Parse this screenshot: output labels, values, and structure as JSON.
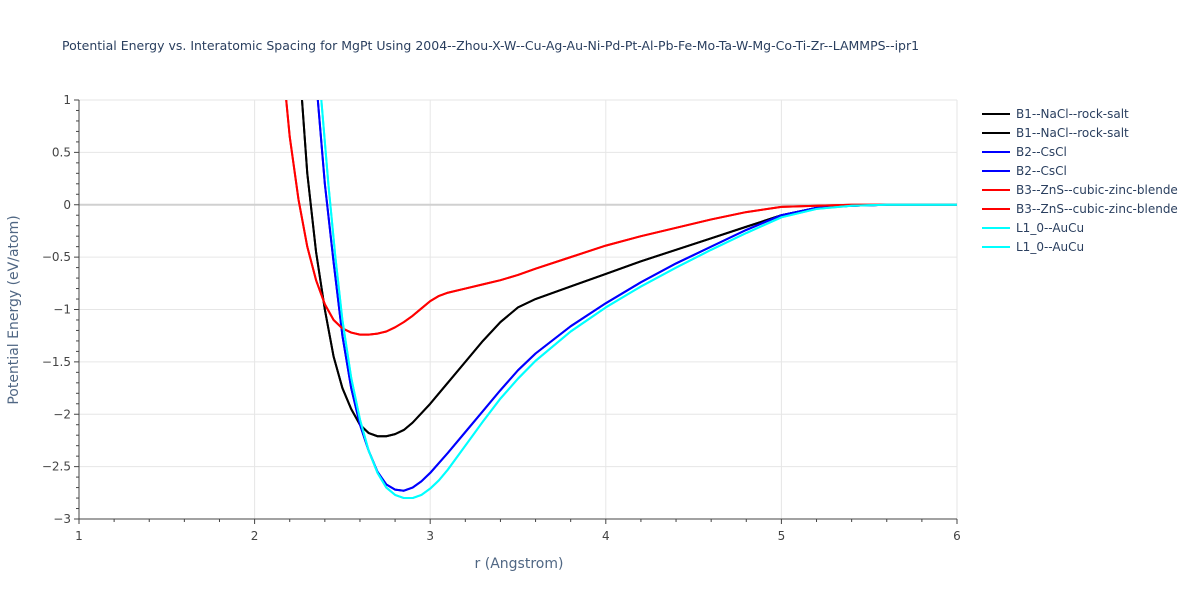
{
  "chart_data": {
    "type": "line",
    "title": "Potential Energy vs. Interatomic Spacing for MgPt Using 2004--Zhou-X-W--Cu-Ag-Au-Ni-Pd-Pt-Al-Pb-Fe-Mo-Ta-W-Mg-Co-Ti-Zr--LAMMPS--ipr1",
    "xlabel": "r (Angstrom)",
    "ylabel": "Potential Energy (eV/atom)",
    "xlim": [
      1,
      6
    ],
    "ylim": [
      -3,
      1
    ],
    "xticks": [
      1,
      2,
      3,
      4,
      5,
      6
    ],
    "xtick_labels": [
      "1",
      "2",
      "3",
      "4",
      "5",
      "6"
    ],
    "yticks": [
      1,
      0.5,
      0,
      -0.5,
      -1,
      -1.5,
      -2,
      -2.5,
      -3
    ],
    "ytick_labels": [
      "1",
      "0.5",
      "0",
      "−0.5",
      "−1",
      "−1.5",
      "−2",
      "−2.5",
      "−3"
    ],
    "grid": true,
    "legend_position": "top-right",
    "series": [
      {
        "name": "B1--NaCl--rock-salt",
        "color": "#000000",
        "x": [
          2.27,
          2.3,
          2.35,
          2.4,
          2.45,
          2.5,
          2.55,
          2.6,
          2.65,
          2.7,
          2.75,
          2.8,
          2.85,
          2.9,
          3.0,
          3.1,
          3.2,
          3.3,
          3.4,
          3.5,
          3.6,
          3.8,
          4.0,
          4.2,
          4.4,
          4.6,
          4.8,
          5.0,
          5.2,
          5.4,
          5.6,
          6.0
        ],
        "y": [
          1.0,
          0.3,
          -0.45,
          -1.0,
          -1.45,
          -1.75,
          -1.95,
          -2.1,
          -2.18,
          -2.21,
          -2.21,
          -2.19,
          -2.15,
          -2.08,
          -1.9,
          -1.7,
          -1.5,
          -1.3,
          -1.12,
          -0.98,
          -0.9,
          -0.78,
          -0.66,
          -0.54,
          -0.43,
          -0.32,
          -0.21,
          -0.1,
          -0.03,
          -0.01,
          0.0,
          0.0
        ]
      },
      {
        "name": "B1--NaCl--rock-salt",
        "color": "#000000",
        "x": [
          2.27,
          2.3,
          2.35,
          2.4,
          2.45,
          2.5,
          2.55,
          2.6,
          2.65,
          2.7,
          2.75,
          2.8,
          2.85,
          2.9,
          3.0,
          3.1,
          3.2,
          3.3,
          3.4,
          3.5,
          3.6,
          3.8,
          4.0,
          4.2,
          4.4,
          4.6,
          4.8,
          5.0,
          5.2,
          5.4,
          5.6,
          6.0
        ],
        "y": [
          1.0,
          0.3,
          -0.45,
          -1.0,
          -1.45,
          -1.75,
          -1.95,
          -2.1,
          -2.18,
          -2.21,
          -2.21,
          -2.19,
          -2.15,
          -2.08,
          -1.9,
          -1.7,
          -1.5,
          -1.3,
          -1.12,
          -0.98,
          -0.9,
          -0.78,
          -0.66,
          -0.54,
          -0.43,
          -0.32,
          -0.21,
          -0.1,
          -0.03,
          -0.01,
          0.0,
          0.0
        ]
      },
      {
        "name": "B2--CsCl",
        "color": "#0000ff",
        "x": [
          2.36,
          2.4,
          2.45,
          2.5,
          2.55,
          2.6,
          2.65,
          2.7,
          2.75,
          2.8,
          2.85,
          2.9,
          2.95,
          3.0,
          3.1,
          3.2,
          3.3,
          3.4,
          3.5,
          3.6,
          3.8,
          4.0,
          4.2,
          4.4,
          4.6,
          4.8,
          5.0,
          5.2,
          5.4,
          5.6,
          6.0
        ],
        "y": [
          1.0,
          0.2,
          -0.55,
          -1.25,
          -1.75,
          -2.1,
          -2.35,
          -2.55,
          -2.67,
          -2.72,
          -2.73,
          -2.7,
          -2.64,
          -2.56,
          -2.37,
          -2.17,
          -1.97,
          -1.77,
          -1.58,
          -1.42,
          -1.16,
          -0.94,
          -0.74,
          -0.56,
          -0.4,
          -0.24,
          -0.1,
          -0.03,
          -0.01,
          0.0,
          0.0
        ]
      },
      {
        "name": "B2--CsCl",
        "color": "#0000ff",
        "x": [
          2.36,
          2.4,
          2.45,
          2.5,
          2.55,
          2.6,
          2.65,
          2.7,
          2.75,
          2.8,
          2.85,
          2.9,
          2.95,
          3.0,
          3.1,
          3.2,
          3.3,
          3.4,
          3.5,
          3.6,
          3.8,
          4.0,
          4.2,
          4.4,
          4.6,
          4.8,
          5.0,
          5.2,
          5.4,
          5.6,
          6.0
        ],
        "y": [
          1.0,
          0.2,
          -0.55,
          -1.25,
          -1.75,
          -2.1,
          -2.35,
          -2.55,
          -2.67,
          -2.72,
          -2.73,
          -2.7,
          -2.64,
          -2.56,
          -2.37,
          -2.17,
          -1.97,
          -1.77,
          -1.58,
          -1.42,
          -1.16,
          -0.94,
          -0.74,
          -0.56,
          -0.4,
          -0.24,
          -0.1,
          -0.03,
          -0.01,
          0.0,
          0.0
        ]
      },
      {
        "name": "B3--ZnS--cubic-zinc-blende",
        "color": "#ff0000",
        "x": [
          2.18,
          2.2,
          2.25,
          2.3,
          2.35,
          2.4,
          2.45,
          2.5,
          2.55,
          2.6,
          2.65,
          2.7,
          2.75,
          2.8,
          2.85,
          2.9,
          2.95,
          3.0,
          3.05,
          3.1,
          3.2,
          3.3,
          3.4,
          3.5,
          3.6,
          3.8,
          4.0,
          4.2,
          4.4,
          4.6,
          4.8,
          5.0,
          5.2,
          5.4,
          5.6,
          6.0
        ],
        "y": [
          1.0,
          0.65,
          0.05,
          -0.4,
          -0.72,
          -0.95,
          -1.1,
          -1.18,
          -1.22,
          -1.24,
          -1.24,
          -1.23,
          -1.21,
          -1.17,
          -1.12,
          -1.06,
          -0.99,
          -0.92,
          -0.87,
          -0.84,
          -0.8,
          -0.76,
          -0.72,
          -0.67,
          -0.61,
          -0.5,
          -0.39,
          -0.3,
          -0.22,
          -0.14,
          -0.07,
          -0.02,
          -0.01,
          0.0,
          0.0,
          0.0
        ]
      },
      {
        "name": "B3--ZnS--cubic-zinc-blende",
        "color": "#ff0000",
        "x": [
          2.18,
          2.2,
          2.25,
          2.3,
          2.35,
          2.4,
          2.45,
          2.5,
          2.55,
          2.6,
          2.65,
          2.7,
          2.75,
          2.8,
          2.85,
          2.9,
          2.95,
          3.0,
          3.05,
          3.1,
          3.2,
          3.3,
          3.4,
          3.5,
          3.6,
          3.8,
          4.0,
          4.2,
          4.4,
          4.6,
          4.8,
          5.0,
          5.2,
          5.4,
          5.6,
          6.0
        ],
        "y": [
          1.0,
          0.65,
          0.05,
          -0.4,
          -0.72,
          -0.95,
          -1.1,
          -1.18,
          -1.22,
          -1.24,
          -1.24,
          -1.23,
          -1.21,
          -1.17,
          -1.12,
          -1.06,
          -0.99,
          -0.92,
          -0.87,
          -0.84,
          -0.8,
          -0.76,
          -0.72,
          -0.67,
          -0.61,
          -0.5,
          -0.39,
          -0.3,
          -0.22,
          -0.14,
          -0.07,
          -0.02,
          -0.01,
          0.0,
          0.0,
          0.0
        ]
      },
      {
        "name": "L1_0--AuCu",
        "color": "#00ffff",
        "x": [
          2.38,
          2.42,
          2.46,
          2.5,
          2.55,
          2.6,
          2.65,
          2.7,
          2.75,
          2.8,
          2.85,
          2.9,
          2.95,
          3.0,
          3.05,
          3.1,
          3.2,
          3.3,
          3.4,
          3.5,
          3.6,
          3.8,
          4.0,
          4.2,
          4.4,
          4.6,
          4.8,
          5.0,
          5.2,
          5.4,
          5.6,
          6.0
        ],
        "y": [
          1.0,
          0.2,
          -0.5,
          -1.1,
          -1.65,
          -2.05,
          -2.35,
          -2.56,
          -2.7,
          -2.77,
          -2.8,
          -2.8,
          -2.77,
          -2.71,
          -2.63,
          -2.53,
          -2.3,
          -2.07,
          -1.85,
          -1.66,
          -1.49,
          -1.21,
          -0.98,
          -0.78,
          -0.6,
          -0.43,
          -0.27,
          -0.12,
          -0.04,
          -0.01,
          0.0,
          0.0
        ]
      },
      {
        "name": "L1_0--AuCu",
        "color": "#00ffff",
        "x": [
          2.38,
          2.42,
          2.46,
          2.5,
          2.55,
          2.6,
          2.65,
          2.7,
          2.75,
          2.8,
          2.85,
          2.9,
          2.95,
          3.0,
          3.05,
          3.1,
          3.2,
          3.3,
          3.4,
          3.5,
          3.6,
          3.8,
          4.0,
          4.2,
          4.4,
          4.6,
          4.8,
          5.0,
          5.2,
          5.4,
          5.6,
          6.0
        ],
        "y": [
          1.0,
          0.2,
          -0.5,
          -1.1,
          -1.65,
          -2.05,
          -2.35,
          -2.56,
          -2.7,
          -2.77,
          -2.8,
          -2.8,
          -2.77,
          -2.71,
          -2.63,
          -2.53,
          -2.3,
          -2.07,
          -1.85,
          -1.66,
          -1.49,
          -1.21,
          -0.98,
          -0.78,
          -0.6,
          -0.43,
          -0.27,
          -0.12,
          -0.04,
          -0.01,
          0.0,
          0.0
        ]
      }
    ]
  }
}
